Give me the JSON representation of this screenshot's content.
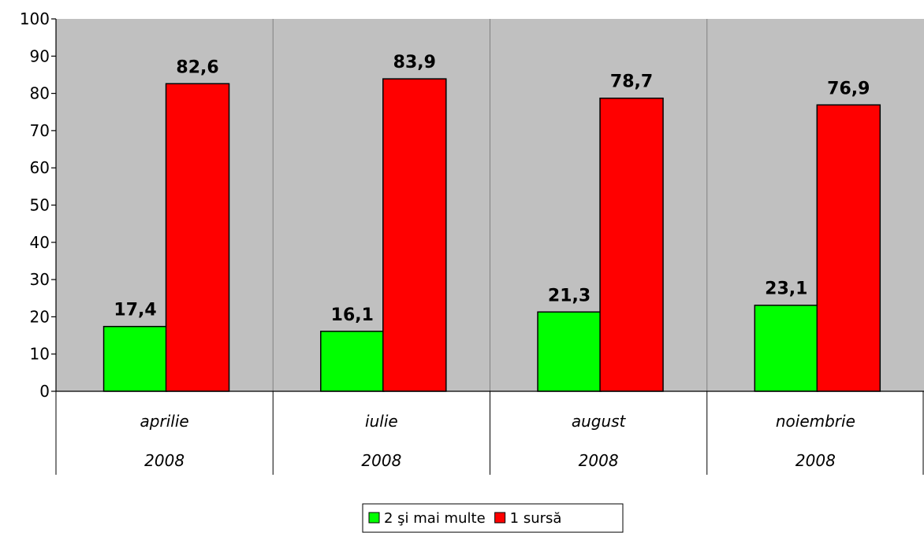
{
  "chart_data": {
    "type": "bar",
    "title": "",
    "xlabel": "",
    "ylabel": "",
    "ylim": [
      0,
      100
    ],
    "yticks": [
      0,
      10,
      20,
      30,
      40,
      50,
      60,
      70,
      80,
      90,
      100
    ],
    "grid": false,
    "legend_position": "bottom",
    "categories": [
      [
        "aprilie",
        "2008"
      ],
      [
        "iulie",
        "2008"
      ],
      [
        "august",
        "2008"
      ],
      [
        "noiembrie",
        "2008"
      ]
    ],
    "series": [
      {
        "name": "2 şi mai multe",
        "color": "#00ff00",
        "values": [
          17.4,
          16.1,
          21.3,
          23.1
        ],
        "labels": [
          "17,4",
          "16,1",
          "21,3",
          "23,1"
        ]
      },
      {
        "name": "1 sursă",
        "color": "#ff0000",
        "values": [
          82.6,
          83.9,
          78.7,
          76.9
        ],
        "labels": [
          "82,6",
          "83,9",
          "78,7",
          "76,9"
        ]
      }
    ],
    "plot_background": "#c0c0c0"
  }
}
